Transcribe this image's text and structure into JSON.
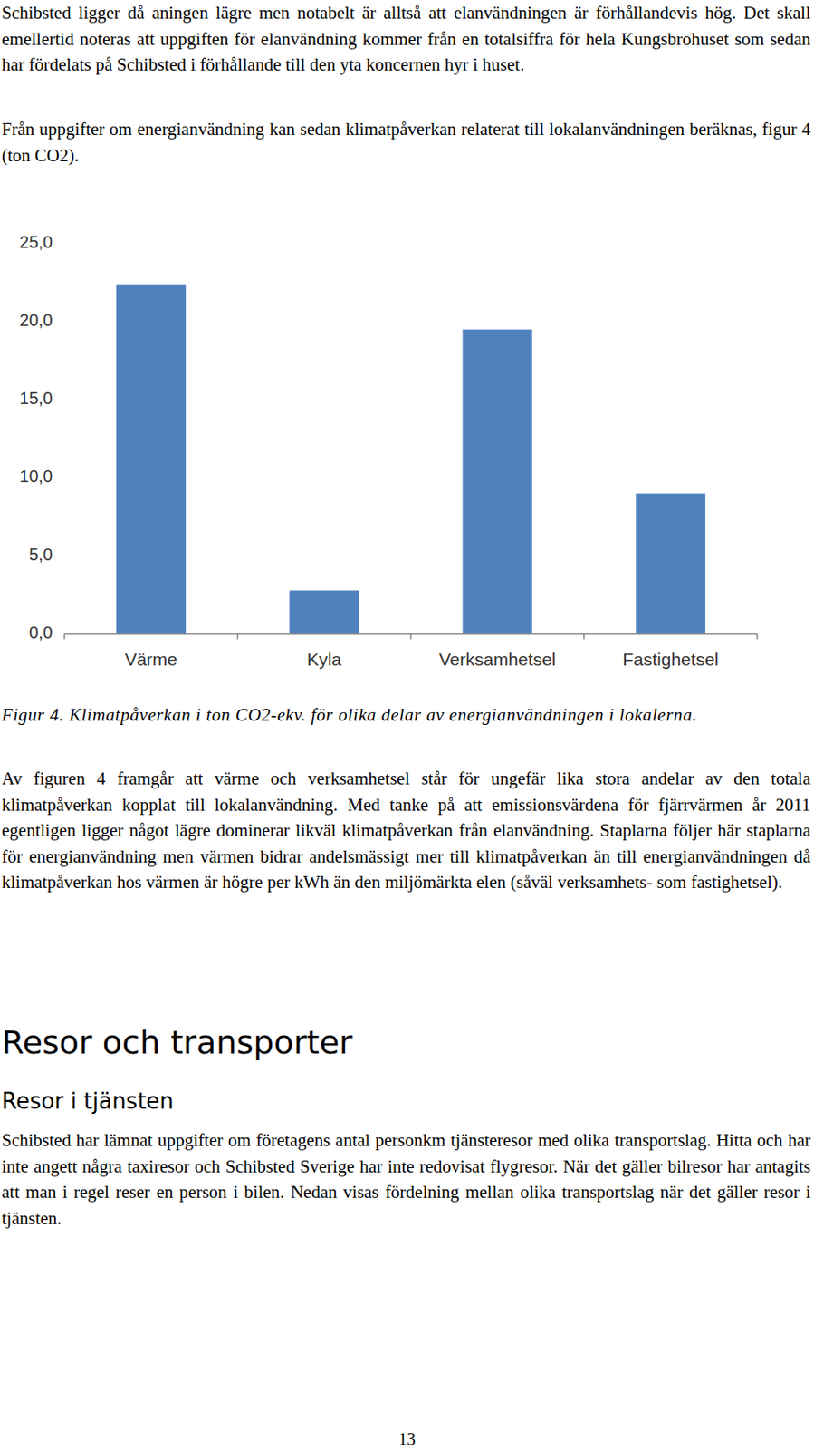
{
  "document": {
    "intro": [
      "Schibsted ligger då aningen lägre men notabelt är alltså att elanvändningen är förhållandevis hög. Det skall emellertid noteras att uppgiften för elanvändning kommer från en totalsiffra för hela Kungsbrohuset som sedan har fördelats på Schibsted i förhållande till den yta koncernen hyr i huset.",
      "Från uppgifter om energianvändning kan sedan klimatpåverkan relaterat till lokalanvändningen beräknas, figur 4 (ton CO2)."
    ],
    "caption": "Figur 4. Klimatpåverkan i ton CO2-ekv. för olika delar av energianvändningen i lokalerna.",
    "discussion": "Av figuren 4 framgår att värme och verksamhetsel står för ungefär lika stora andelar av den totala klimatpåverkan kopplat till lokalanvändning. Med tanke på att emissionsvärdena för fjärrvärmen år 2011 egentligen ligger något lägre dominerar likväl klimatpåverkan från elanvändning. Staplarna följer här staplarna för energianvändning men värmen bidrar andelsmässigt mer till klimatpåverkan än till energianvändningen då klimatpåverkan hos värmen är högre per kWh än den miljömärkta elen (såväl verksamhets- som fastighetsel).",
    "section_heading": "Resor och transporter",
    "subsection_heading": "Resor i tjänsten",
    "body": "Schibsted har lämnat uppgifter om företagens antal personkm tjänsteresor med olika transportslag. Hitta och har inte angett några taxiresor och Schibsted Sverige har inte redovisat flygresor.  När det gäller bilresor har antagits att man i regel reser en person i bilen. Nedan visas fördelning mellan olika transportslag när det gäller resor i tjänsten.",
    "page_number": "13"
  },
  "chart_data": {
    "type": "bar",
    "categories": [
      "Värme",
      "Kyla",
      "Verksamhetsel",
      "Fastighetsel"
    ],
    "values": [
      22.4,
      2.8,
      19.5,
      9.0
    ],
    "color": "#4f81bd",
    "ylim": [
      0,
      25
    ],
    "yticks": [
      {
        "value": 0,
        "label": "0,0"
      },
      {
        "value": 5,
        "label": "5,0"
      },
      {
        "value": 10,
        "label": "10,0"
      },
      {
        "value": 15,
        "label": "15,0"
      },
      {
        "value": 20,
        "label": "20,0"
      },
      {
        "value": 25,
        "label": "25,0"
      }
    ],
    "grid": false
  }
}
